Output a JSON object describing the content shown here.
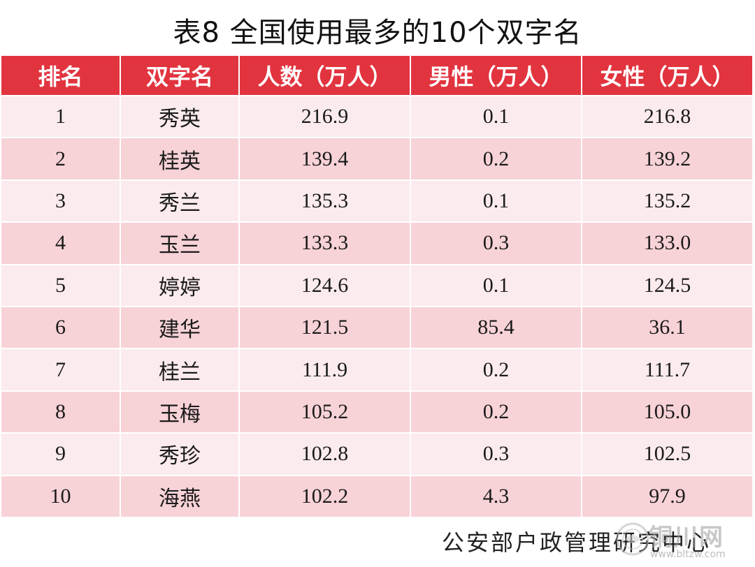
{
  "title": "表8  全国使用最多的10个双字名",
  "table": {
    "headers": [
      "排名",
      "双字名",
      "人数（万人）",
      "男性（万人）",
      "女性（万人）"
    ],
    "rows": [
      [
        "1",
        "秀英",
        "216.9",
        "0.1",
        "216.8"
      ],
      [
        "2",
        "桂英",
        "139.4",
        "0.2",
        "139.2"
      ],
      [
        "3",
        "秀兰",
        "135.3",
        "0.1",
        "135.2"
      ],
      [
        "4",
        "玉兰",
        "133.3",
        "0.3",
        "133.0"
      ],
      [
        "5",
        "婷婷",
        "124.6",
        "0.1",
        "124.5"
      ],
      [
        "6",
        "建华",
        "121.5",
        "85.4",
        "36.1"
      ],
      [
        "7",
        "桂兰",
        "111.9",
        "0.2",
        "111.7"
      ],
      [
        "8",
        "玉梅",
        "105.2",
        "0.2",
        "105.0"
      ],
      [
        "9",
        "秀珍",
        "102.8",
        "0.3",
        "102.5"
      ],
      [
        "10",
        "海燕",
        "102.2",
        "4.3",
        "97.9"
      ]
    ]
  },
  "source": "公安部户政管理研究中心",
  "watermark": {
    "name": "铜川网",
    "url": "www.bltzw.com"
  },
  "colors": {
    "header_bg": "#e1343f",
    "row_light": "#fbebed",
    "row_dark": "#f7d2d7"
  }
}
